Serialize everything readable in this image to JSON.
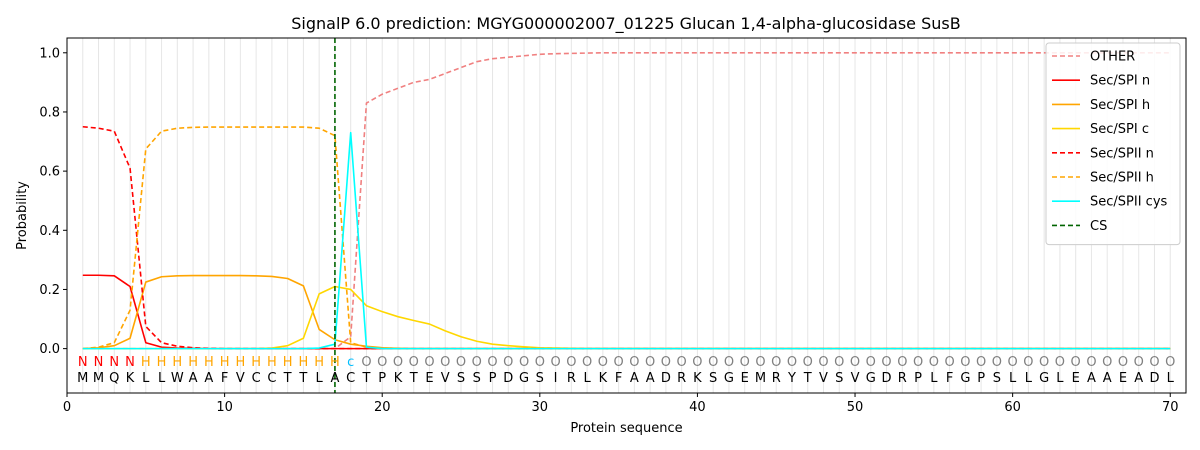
{
  "chart_data": {
    "type": "line",
    "title": "SignalP 6.0 prediction: MGYG000002007_01225 Glucan 1,4-alpha-glucosidase SusB",
    "xlabel": "Protein sequence",
    "ylabel": "Probability",
    "xlim": [
      0,
      71
    ],
    "ylim": [
      -0.15,
      1.05
    ],
    "xticks": [
      0,
      10,
      20,
      30,
      40,
      50,
      60,
      70
    ],
    "yticks": [
      0.0,
      0.2,
      0.4,
      0.6,
      0.8,
      1.0
    ],
    "ytick_labels": [
      "0.0",
      "0.2",
      "0.4",
      "0.6",
      "0.8",
      "1.0"
    ],
    "grid": "vertical lines at each residue",
    "legend_position": "top-right",
    "sequence": [
      "M",
      "M",
      "Q",
      "K",
      "L",
      "L",
      "W",
      "A",
      "A",
      "F",
      "V",
      "C",
      "C",
      "T",
      "T",
      "L",
      "A",
      "C",
      "T",
      "P",
      "K",
      "T",
      "E",
      "V",
      "S",
      "S",
      "P",
      "D",
      "G",
      "S",
      "I",
      "R",
      "L",
      "K",
      "F",
      "A",
      "A",
      "D",
      "R",
      "K",
      "S",
      "G",
      "E",
      "M",
      "R",
      "Y",
      "T",
      "V",
      "S",
      "V",
      "G",
      "D",
      "R",
      "P",
      "L",
      "F",
      "G",
      "P",
      "S",
      "L",
      "L",
      "G",
      "L",
      "E",
      "A",
      "A",
      "E",
      "A",
      "D",
      "L"
    ],
    "annotation": [
      "N",
      "N",
      "N",
      "N",
      "H",
      "H",
      "H",
      "H",
      "H",
      "H",
      "H",
      "H",
      "H",
      "H",
      "H",
      "H",
      "H",
      "c",
      "O",
      "O",
      "O",
      "O",
      "O",
      "O",
      "O",
      "O",
      "O",
      "O",
      "O",
      "O",
      "O",
      "O",
      "O",
      "O",
      "O",
      "O",
      "O",
      "O",
      "O",
      "O",
      "O",
      "O",
      "O",
      "O",
      "O",
      "O",
      "O",
      "O",
      "O",
      "O",
      "O",
      "O",
      "O",
      "O",
      "O",
      "O",
      "O",
      "O",
      "O",
      "O",
      "O",
      "O",
      "O",
      "O",
      "O",
      "O",
      "O",
      "O",
      "O",
      "O"
    ],
    "annotation_colors": {
      "N": "#ff0000",
      "H": "#ffa500",
      "c": "#00bfff",
      "O": "#808080"
    },
    "cs_position": 17,
    "series": [
      {
        "name": "OTHER",
        "color": "#f08080",
        "dash": true,
        "values": [
          0.0,
          0.0,
          0.0,
          0.0,
          0.0,
          0.0,
          0.0,
          0.0,
          0.0,
          0.0,
          0.0,
          0.0,
          0.0,
          0.0,
          0.0,
          0.0,
          0.0,
          0.04,
          0.83,
          0.86,
          0.88,
          0.9,
          0.91,
          0.93,
          0.95,
          0.97,
          0.98,
          0.985,
          0.99,
          0.995,
          0.997,
          0.998,
          0.999,
          1,
          1,
          1,
          1,
          1,
          1,
          1,
          1,
          1,
          1,
          1,
          1,
          1,
          1,
          1,
          1,
          1,
          1,
          1,
          1,
          1,
          1,
          1,
          1,
          1,
          1,
          1,
          1,
          1,
          1,
          1,
          1,
          1,
          1,
          1,
          1,
          1
        ]
      },
      {
        "name": "Sec/SPI n",
        "color": "#ff0000",
        "dash": false,
        "values": [
          0.248,
          0.248,
          0.246,
          0.21,
          0.02,
          0.005,
          0.002,
          0.001,
          0.0,
          0.0,
          0.0,
          0.0,
          0.0,
          0.0,
          0.0,
          0.0,
          0.0,
          0.0,
          0.0,
          0.0,
          0.0,
          0.0,
          0.0,
          0.0,
          0.0,
          0.0,
          0.0,
          0.0,
          0.0,
          0.0,
          0.0,
          0.0,
          0.0,
          0.0,
          0.0,
          0.0,
          0.0,
          0.0,
          0.0,
          0.0,
          0.0,
          0.0,
          0.0,
          0.0,
          0.0,
          0.0,
          0.0,
          0.0,
          0.0,
          0.0,
          0.0,
          0.0,
          0.0,
          0.0,
          0.0,
          0.0,
          0.0,
          0.0,
          0.0,
          0.0,
          0.0,
          0.0,
          0.0,
          0.0,
          0.0,
          0.0,
          0.0,
          0.0,
          0.0,
          0.0
        ]
      },
      {
        "name": "Sec/SPI h",
        "color": "#ffa500",
        "dash": false,
        "values": [
          0.0,
          0.003,
          0.01,
          0.035,
          0.225,
          0.243,
          0.246,
          0.247,
          0.247,
          0.247,
          0.247,
          0.246,
          0.244,
          0.237,
          0.212,
          0.065,
          0.03,
          0.015,
          0.008,
          0.003,
          0.001,
          0.0,
          0.0,
          0.0,
          0.0,
          0.0,
          0.0,
          0.0,
          0.0,
          0.0,
          0.0,
          0.0,
          0.0,
          0.0,
          0.0,
          0.0,
          0.0,
          0.0,
          0.0,
          0.0,
          0.0,
          0.0,
          0.0,
          0.0,
          0.0,
          0.0,
          0.0,
          0.0,
          0.0,
          0.0,
          0.0,
          0.0,
          0.0,
          0.0,
          0.0,
          0.0,
          0.0,
          0.0,
          0.0,
          0.0,
          0.0,
          0.0,
          0.0,
          0.0,
          0.0,
          0.0,
          0.0,
          0.0,
          0.0,
          0.0
        ]
      },
      {
        "name": "Sec/SPI c",
        "color": "#ffd700",
        "dash": false,
        "values": [
          0.0,
          0.0,
          0.0,
          0.0,
          0.0,
          0.0,
          0.0,
          0.0,
          0.0,
          0.0,
          0.0,
          0.0,
          0.002,
          0.01,
          0.035,
          0.185,
          0.21,
          0.2,
          0.145,
          0.125,
          0.108,
          0.095,
          0.083,
          0.06,
          0.04,
          0.025,
          0.015,
          0.01,
          0.006,
          0.003,
          0.002,
          0.001,
          0.0,
          0.0,
          0.0,
          0.0,
          0.0,
          0.0,
          0.0,
          0.0,
          0.0,
          0.0,
          0.0,
          0.0,
          0.0,
          0.0,
          0.0,
          0.0,
          0.0,
          0.0,
          0.0,
          0.0,
          0.0,
          0.0,
          0.0,
          0.0,
          0.0,
          0.0,
          0.0,
          0.0,
          0.0,
          0.0,
          0.0,
          0.0,
          0.0,
          0.0,
          0.0,
          0.0,
          0.0,
          0.0
        ]
      },
      {
        "name": "Sec/SPII n",
        "color": "#ff0000",
        "dash": true,
        "values": [
          0.75,
          0.745,
          0.735,
          0.61,
          0.075,
          0.02,
          0.008,
          0.003,
          0.001,
          0.0,
          0.0,
          0.0,
          0.0,
          0.0,
          0.0,
          0.0,
          0.0,
          0.0,
          0.0,
          0.0,
          0.0,
          0.0,
          0.0,
          0.0,
          0.0,
          0.0,
          0.0,
          0.0,
          0.0,
          0.0,
          0.0,
          0.0,
          0.0,
          0.0,
          0.0,
          0.0,
          0.0,
          0.0,
          0.0,
          0.0,
          0.0,
          0.0,
          0.0,
          0.0,
          0.0,
          0.0,
          0.0,
          0.0,
          0.0,
          0.0,
          0.0,
          0.0,
          0.0,
          0.0,
          0.0,
          0.0,
          0.0,
          0.0,
          0.0,
          0.0,
          0.0,
          0.0,
          0.0,
          0.0,
          0.0,
          0.0,
          0.0,
          0.0,
          0.0,
          0.0
        ]
      },
      {
        "name": "Sec/SPII h",
        "color": "#ffa500",
        "dash": true,
        "values": [
          0.0,
          0.005,
          0.02,
          0.13,
          0.675,
          0.735,
          0.745,
          0.748,
          0.749,
          0.749,
          0.749,
          0.749,
          0.749,
          0.749,
          0.749,
          0.745,
          0.72,
          0.02,
          0.005,
          0.002,
          0.0,
          0.0,
          0.0,
          0.0,
          0.0,
          0.0,
          0.0,
          0.0,
          0.0,
          0.0,
          0.0,
          0.0,
          0.0,
          0.0,
          0.0,
          0.0,
          0.0,
          0.0,
          0.0,
          0.0,
          0.0,
          0.0,
          0.0,
          0.0,
          0.0,
          0.0,
          0.0,
          0.0,
          0.0,
          0.0,
          0.0,
          0.0,
          0.0,
          0.0,
          0.0,
          0.0,
          0.0,
          0.0,
          0.0,
          0.0,
          0.0,
          0.0,
          0.0,
          0.0,
          0.0,
          0.0,
          0.0,
          0.0,
          0.0,
          0.0
        ]
      },
      {
        "name": "Sec/SPII cys",
        "color": "#00ffff",
        "dash": false,
        "values": [
          0.0,
          0.0,
          0.0,
          0.0,
          0.0,
          0.0,
          0.0,
          0.0,
          0.0,
          0.0,
          0.0,
          0.0,
          0.0,
          0.0,
          0.0,
          0.002,
          0.015,
          0.73,
          0.005,
          0.0,
          0.0,
          0.0,
          0.0,
          0.0,
          0.0,
          0.0,
          0.0,
          0.0,
          0.0,
          0.0,
          0.0,
          0.0,
          0.0,
          0.0,
          0.0,
          0.0,
          0.0,
          0.0,
          0.0,
          0.0,
          0.0,
          0.0,
          0.0,
          0.0,
          0.0,
          0.0,
          0.0,
          0.0,
          0.0,
          0.0,
          0.0,
          0.0,
          0.0,
          0.0,
          0.0,
          0.0,
          0.0,
          0.0,
          0.0,
          0.0,
          0.0,
          0.0,
          0.0,
          0.0,
          0.0,
          0.0,
          0.0,
          0.0,
          0.0,
          0.0
        ]
      }
    ],
    "legend": [
      {
        "name": "OTHER",
        "color": "#f08080",
        "dash": true
      },
      {
        "name": "Sec/SPI n",
        "color": "#ff0000",
        "dash": false
      },
      {
        "name": "Sec/SPI h",
        "color": "#ffa500",
        "dash": false
      },
      {
        "name": "Sec/SPI c",
        "color": "#ffd700",
        "dash": false
      },
      {
        "name": "Sec/SPII n",
        "color": "#ff0000",
        "dash": true
      },
      {
        "name": "Sec/SPII h",
        "color": "#ffa500",
        "dash": true
      },
      {
        "name": "Sec/SPII cys",
        "color": "#00ffff",
        "dash": false
      },
      {
        "name": "CS",
        "color": "#006400",
        "dash": true
      }
    ]
  }
}
